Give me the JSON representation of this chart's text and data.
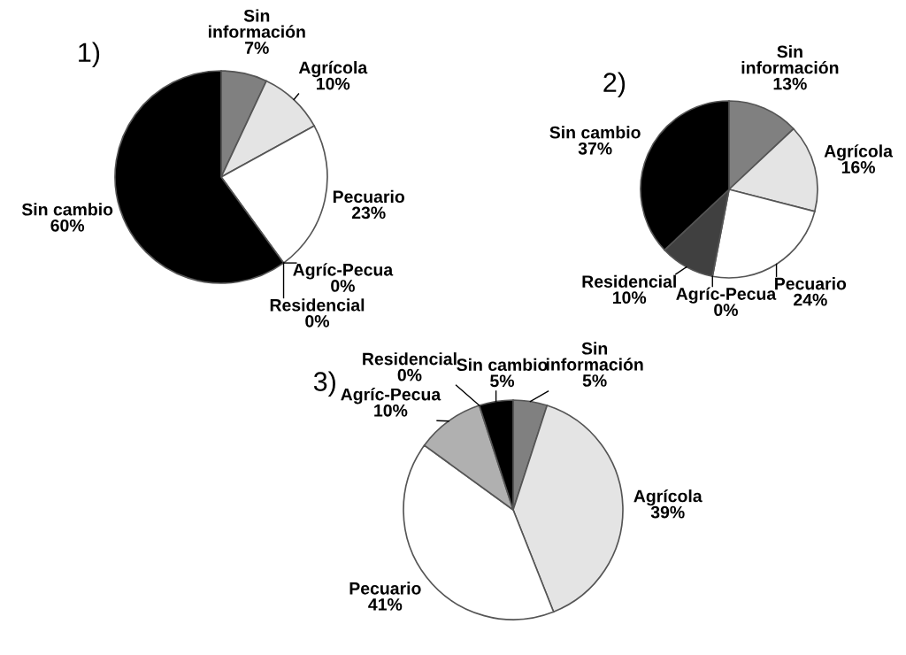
{
  "chart_data": [
    {
      "type": "pie",
      "title": "1)",
      "categories": [
        "Sin\ninformación",
        "Agrícola",
        "Pecuario",
        "Residencial",
        "Agríc-Pecua",
        "Sin cambio"
      ],
      "values": [
        7,
        10,
        23,
        0,
        0,
        60
      ],
      "value_labels": [
        "7%",
        "10%",
        "23%",
        "0%",
        "0%",
        "60%"
      ],
      "colors": [
        "#808080",
        "#e4e4e4",
        "#ffffff",
        "#404040",
        "#b0b0b0",
        "#000000"
      ]
    },
    {
      "type": "pie",
      "title": "2)",
      "categories": [
        "Sin\ninformación",
        "Agrícola",
        "Pecuario",
        "Agríc-Pecua",
        "Residencial",
        "Sin cambio"
      ],
      "values": [
        13,
        16,
        24,
        0,
        10,
        37
      ],
      "value_labels": [
        "13%",
        "16%",
        "24%",
        "0%",
        "10%",
        "37%"
      ],
      "colors": [
        "#808080",
        "#e4e4e4",
        "#ffffff",
        "#b0b0b0",
        "#404040",
        "#000000"
      ]
    },
    {
      "type": "pie",
      "title": "3)",
      "categories": [
        "Sin\ninformación",
        "Agrícola",
        "Pecuario",
        "Agríc-Pecua",
        "Residencial",
        "Sin cambio"
      ],
      "values": [
        5,
        39,
        41,
        10,
        0,
        5
      ],
      "value_labels": [
        "5%",
        "39%",
        "41%",
        "10%",
        "0%",
        "5%"
      ],
      "colors": [
        "#808080",
        "#e4e4e4",
        "#ffffff",
        "#b0b0b0",
        "#404040",
        "#000000"
      ]
    }
  ]
}
